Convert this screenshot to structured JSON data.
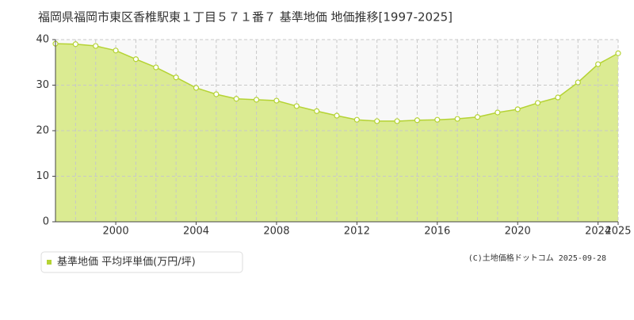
{
  "chart_data": {
    "type": "area",
    "title": "福岡県福岡市東区香椎駅東１丁目５７１番７ 基準地価 地価推移[1997-2025]",
    "credit": "(C)土地価格ドットコム 2025-09-28",
    "x": [
      1997,
      1998,
      1999,
      2000,
      2001,
      2002,
      2003,
      2004,
      2005,
      2006,
      2007,
      2008,
      2009,
      2010,
      2011,
      2012,
      2013,
      2014,
      2015,
      2016,
      2017,
      2018,
      2019,
      2020,
      2021,
      2022,
      2023,
      2024,
      2025
    ],
    "series": [
      {
        "name": "基準地価 平均坪単価(万円/坪)",
        "color": "#b5d334",
        "fill": "#dbeb92",
        "values": [
          39.1,
          39.0,
          38.6,
          37.6,
          35.7,
          33.9,
          31.7,
          29.4,
          28.0,
          27.0,
          26.8,
          26.6,
          25.4,
          24.3,
          23.3,
          22.4,
          22.1,
          22.1,
          22.3,
          22.4,
          22.6,
          23.0,
          24.0,
          24.7,
          26.1,
          27.3,
          30.6,
          34.6,
          37.0
        ]
      }
    ],
    "xlim": [
      1997,
      2025
    ],
    "xticks": [
      2000,
      2004,
      2008,
      2012,
      2016,
      2020,
      2024,
      2025
    ],
    "ylim": [
      0,
      40
    ],
    "yticks": [
      0,
      10,
      20,
      30,
      40
    ],
    "grid": true,
    "legend": "bottom-left"
  }
}
